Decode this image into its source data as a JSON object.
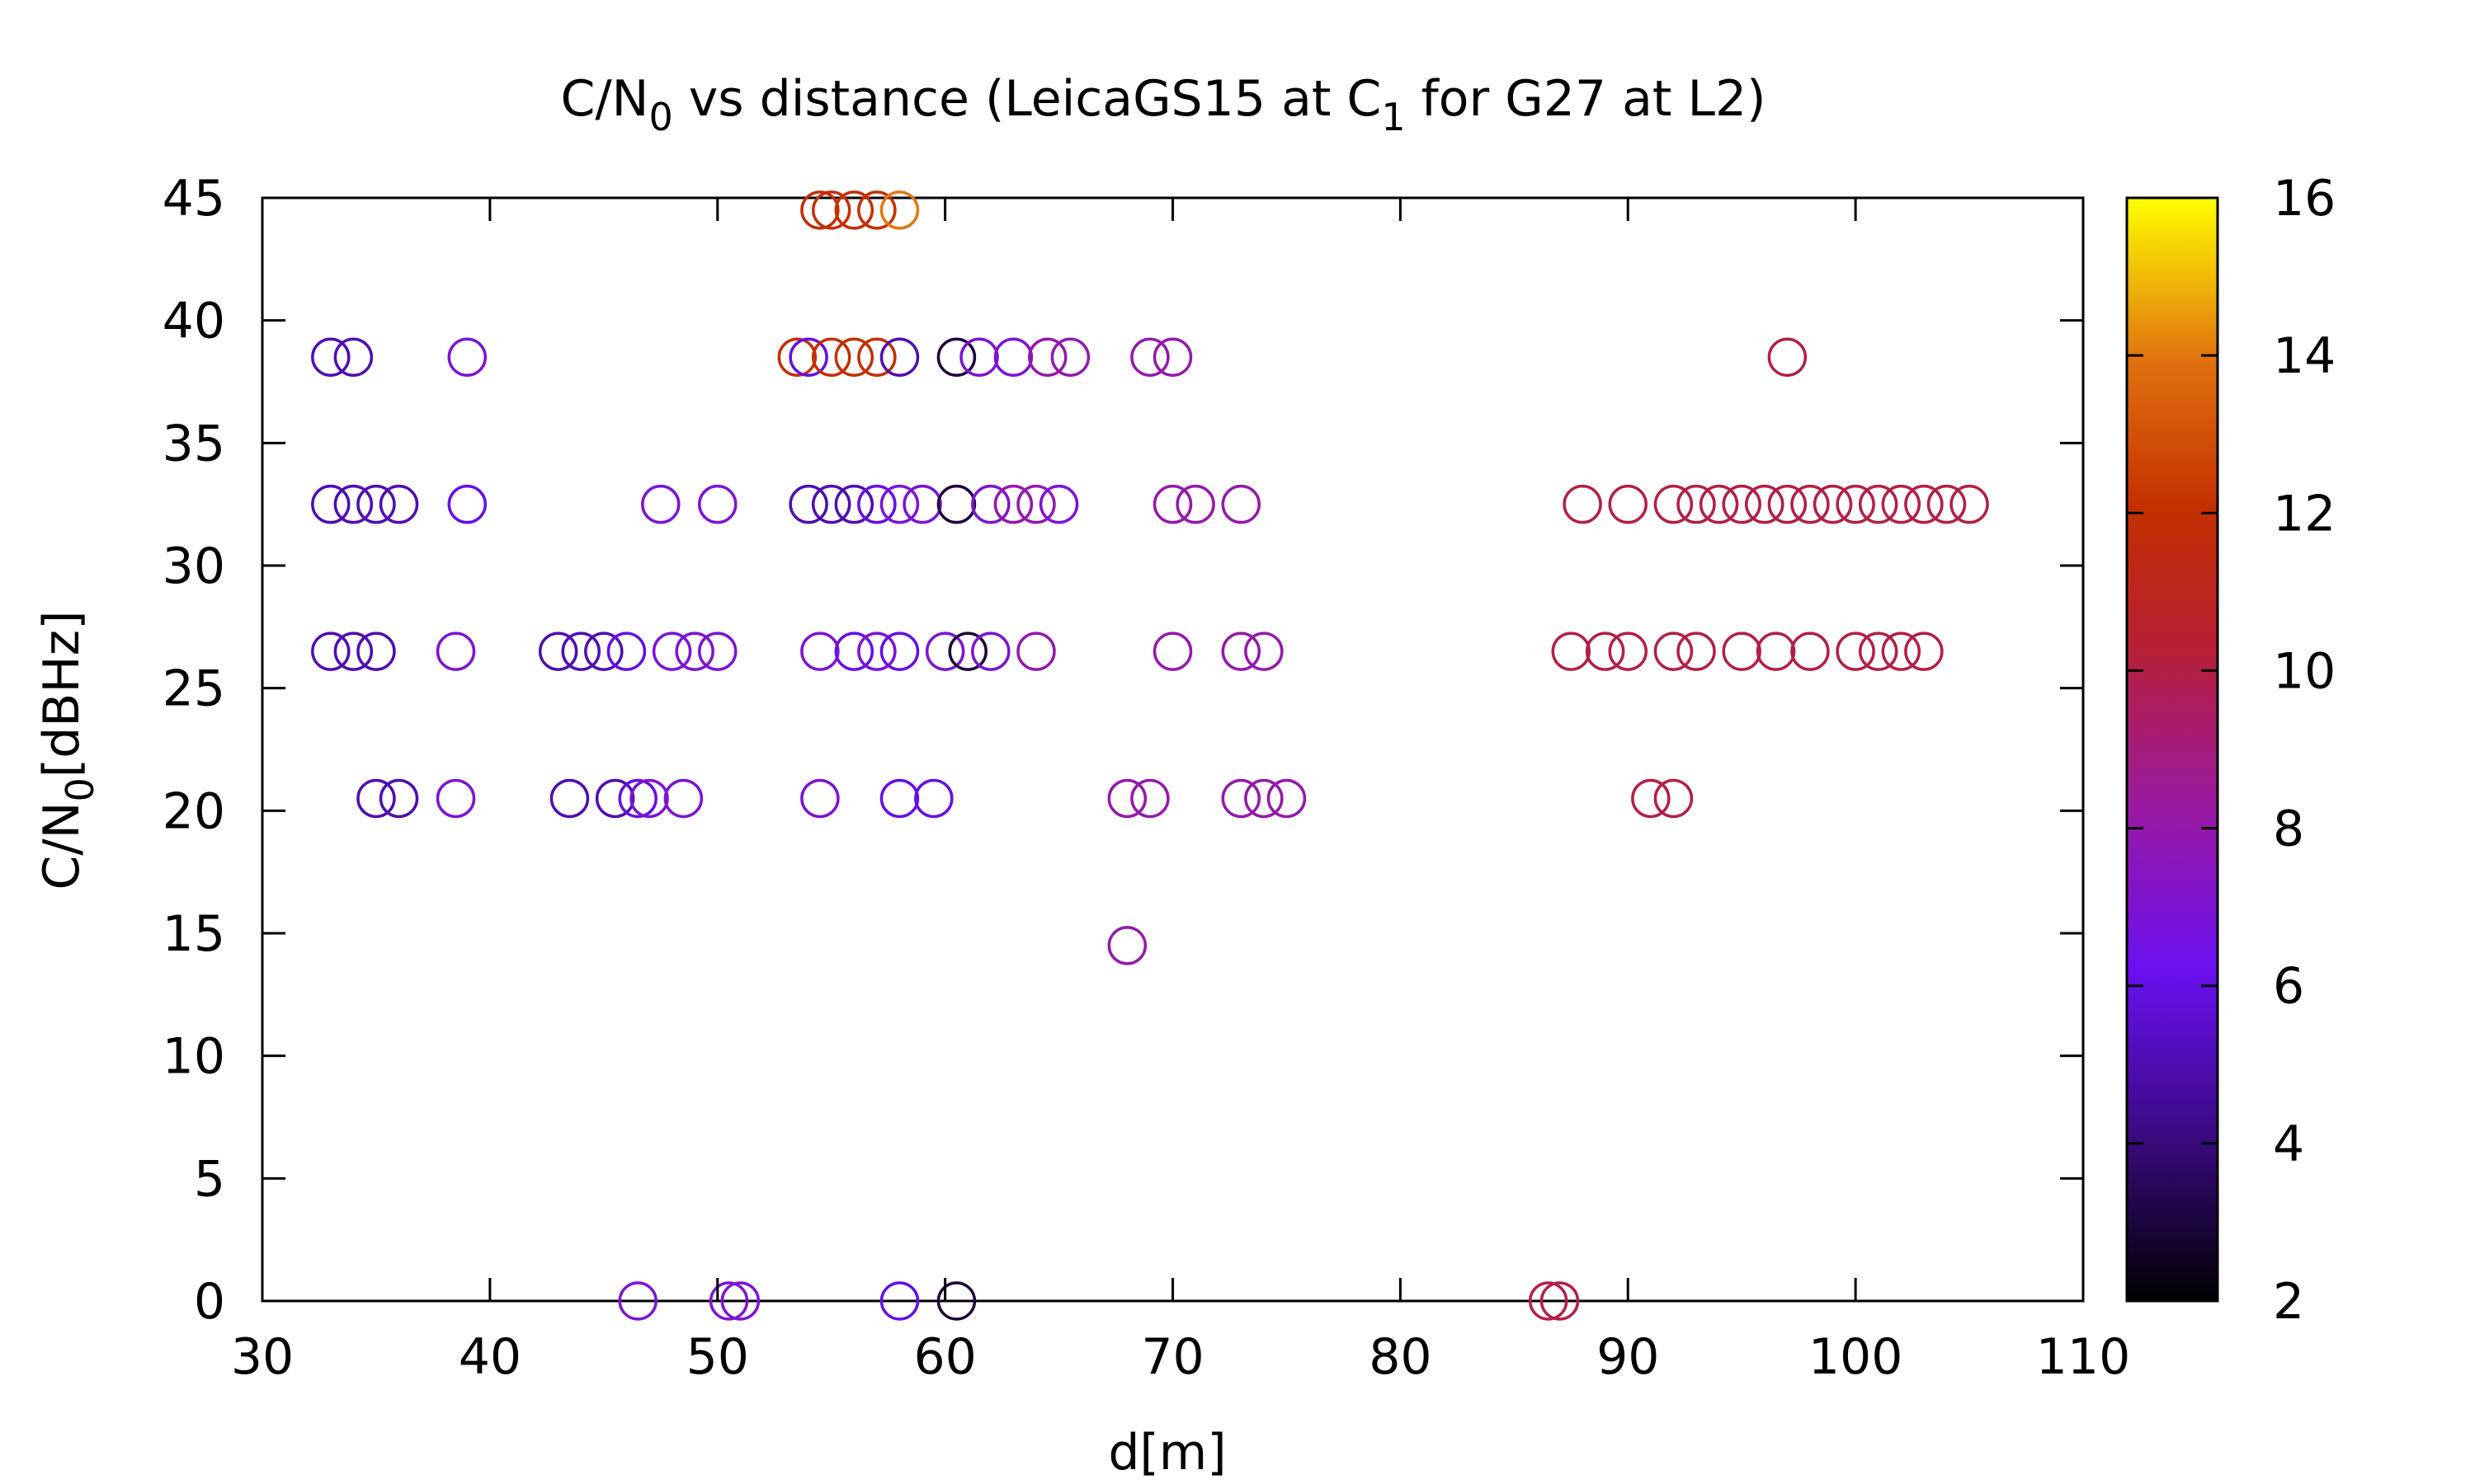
{
  "chart_data": {
    "type": "scatter",
    "title": {
      "pre": "C/N",
      "sub": "0",
      "mid": " vs distance (LeicaGS15 at C",
      "sub2": "1",
      "post": " for G27 at L2)"
    },
    "xlabel": "d[m]",
    "ylabel": {
      "pre": "C/N",
      "sub": "0",
      "post": "[dBHz]"
    },
    "xlim": [
      30,
      110
    ],
    "ylim": [
      0,
      45
    ],
    "xticks": [
      30,
      40,
      50,
      60,
      70,
      80,
      90,
      100,
      110
    ],
    "yticks": [
      0,
      5,
      10,
      15,
      20,
      25,
      30,
      35,
      40,
      45
    ],
    "colorbar": {
      "range": [
        2,
        16
      ],
      "ticks": [
        2,
        4,
        6,
        8,
        10,
        12,
        14,
        16
      ],
      "palette": "black-blue-purple-red-orange-yellow"
    },
    "grid": false,
    "marker": "open-circle",
    "points": [
      [
        56,
        44.5,
        12
      ],
      [
        55,
        44.5,
        12
      ],
      [
        57,
        44.5,
        12
      ],
      [
        58,
        44.5,
        14
      ],
      [
        54.5,
        44.5,
        12
      ],
      [
        33,
        38.5,
        5
      ],
      [
        34,
        38.5,
        5
      ],
      [
        39,
        38.5,
        7
      ],
      [
        53.5,
        38.5,
        12
      ],
      [
        54,
        38.5,
        6
      ],
      [
        55,
        38.5,
        12
      ],
      [
        56,
        38.5,
        12
      ],
      [
        57,
        38.5,
        12
      ],
      [
        58,
        38.5,
        5
      ],
      [
        60.5,
        38.5,
        3
      ],
      [
        61.5,
        38.5,
        7
      ],
      [
        63,
        38.5,
        7
      ],
      [
        64.5,
        38.5,
        8
      ],
      [
        65.5,
        38.5,
        8
      ],
      [
        69,
        38.5,
        8
      ],
      [
        70,
        38.5,
        8
      ],
      [
        97,
        38.5,
        10
      ],
      [
        33,
        32.5,
        5
      ],
      [
        34,
        32.5,
        5
      ],
      [
        35,
        32.5,
        5
      ],
      [
        36,
        32.5,
        5
      ],
      [
        39,
        32.5,
        6
      ],
      [
        47.5,
        32.5,
        7
      ],
      [
        50,
        32.5,
        7
      ],
      [
        54,
        32.5,
        5
      ],
      [
        55,
        32.5,
        5
      ],
      [
        56,
        32.5,
        5
      ],
      [
        57,
        32.5,
        6
      ],
      [
        58,
        32.5,
        7
      ],
      [
        59,
        32.5,
        7
      ],
      [
        60.5,
        32.5,
        3
      ],
      [
        62,
        32.5,
        7
      ],
      [
        63,
        32.5,
        8
      ],
      [
        64,
        32.5,
        8
      ],
      [
        65,
        32.5,
        7
      ],
      [
        70,
        32.5,
        8
      ],
      [
        71,
        32.5,
        8
      ],
      [
        73,
        32.5,
        8
      ],
      [
        88,
        32.5,
        10
      ],
      [
        90,
        32.5,
        10
      ],
      [
        92,
        32.5,
        10
      ],
      [
        93,
        32.5,
        10
      ],
      [
        94,
        32.5,
        10
      ],
      [
        95,
        32.5,
        10
      ],
      [
        96,
        32.5,
        10
      ],
      [
        97,
        32.5,
        10
      ],
      [
        98,
        32.5,
        10
      ],
      [
        99,
        32.5,
        10
      ],
      [
        100,
        32.5,
        10
      ],
      [
        101,
        32.5,
        10
      ],
      [
        102,
        32.5,
        10
      ],
      [
        103,
        32.5,
        10
      ],
      [
        104,
        32.5,
        10
      ],
      [
        105,
        32.5,
        10
      ],
      [
        33,
        26.5,
        5
      ],
      [
        34,
        26.5,
        5
      ],
      [
        35,
        26.5,
        5
      ],
      [
        38.5,
        26.5,
        7
      ],
      [
        43,
        26.5,
        5
      ],
      [
        44,
        26.5,
        5
      ],
      [
        45,
        26.5,
        5
      ],
      [
        46,
        26.5,
        6
      ],
      [
        48,
        26.5,
        7
      ],
      [
        49,
        26.5,
        7
      ],
      [
        50,
        26.5,
        7
      ],
      [
        54.5,
        26.5,
        7
      ],
      [
        56,
        26.5,
        6
      ],
      [
        57,
        26.5,
        7
      ],
      [
        58,
        26.5,
        6
      ],
      [
        60,
        26.5,
        7
      ],
      [
        61,
        26.5,
        3
      ],
      [
        62,
        26.5,
        7
      ],
      [
        64,
        26.5,
        8
      ],
      [
        70,
        26.5,
        8
      ],
      [
        73,
        26.5,
        8
      ],
      [
        74,
        26.5,
        8
      ],
      [
        87.5,
        26.5,
        10
      ],
      [
        89,
        26.5,
        10
      ],
      [
        90,
        26.5,
        10
      ],
      [
        92,
        26.5,
        10
      ],
      [
        93,
        26.5,
        10
      ],
      [
        95,
        26.5,
        10
      ],
      [
        96.5,
        26.5,
        10
      ],
      [
        98,
        26.5,
        10
      ],
      [
        100,
        26.5,
        10
      ],
      [
        101,
        26.5,
        10
      ],
      [
        102,
        26.5,
        10
      ],
      [
        103,
        26.5,
        10
      ],
      [
        35,
        20.5,
        5
      ],
      [
        36,
        20.5,
        5
      ],
      [
        38.5,
        20.5,
        7
      ],
      [
        43.5,
        20.5,
        5
      ],
      [
        45.5,
        20.5,
        5
      ],
      [
        46.5,
        20.5,
        6
      ],
      [
        47,
        20.5,
        7
      ],
      [
        48.5,
        20.5,
        7
      ],
      [
        54.5,
        20.5,
        7
      ],
      [
        58,
        20.5,
        6
      ],
      [
        59.5,
        20.5,
        6
      ],
      [
        68,
        20.5,
        8
      ],
      [
        69,
        20.5,
        8
      ],
      [
        73,
        20.5,
        8
      ],
      [
        74,
        20.5,
        8
      ],
      [
        75,
        20.5,
        8
      ],
      [
        91,
        20.5,
        10
      ],
      [
        92,
        20.5,
        10
      ],
      [
        68,
        14.5,
        8
      ],
      [
        46.5,
        0,
        7
      ],
      [
        50.5,
        0,
        7
      ],
      [
        51,
        0,
        7
      ],
      [
        58,
        0,
        6
      ],
      [
        60.5,
        0,
        3
      ],
      [
        86.5,
        0,
        10
      ],
      [
        87,
        0,
        10
      ]
    ]
  }
}
